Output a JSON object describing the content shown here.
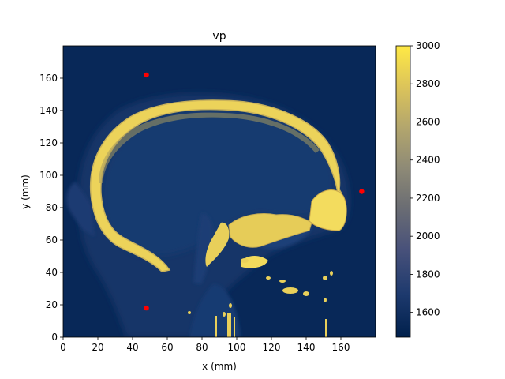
{
  "chart_data": {
    "type": "heatmap",
    "title": "vp",
    "xlabel": "x (mm)",
    "ylabel": "y (mm)",
    "xlim": [
      0,
      180
    ],
    "ylim": [
      0,
      180
    ],
    "x_ticks": [
      0,
      20,
      40,
      60,
      80,
      100,
      120,
      140,
      160
    ],
    "y_ticks": [
      0,
      20,
      40,
      60,
      80,
      100,
      120,
      140,
      160
    ],
    "colorbar": {
      "min": 1470,
      "max": 3000,
      "ticks": [
        1600,
        1800,
        2000,
        2200,
        2400,
        2600,
        2800,
        3000
      ],
      "colormap": "cividis"
    },
    "image_content": "sagittal head MRI slice shown as a speed-of-sound map; bright yellow skull and bone, dark blue soft tissue and water background",
    "points": [
      {
        "x": 48,
        "y": 162,
        "color": "#ff0000"
      },
      {
        "x": 172,
        "y": 90,
        "color": "#ff0000"
      },
      {
        "x": 48,
        "y": 18,
        "color": "#ff0000"
      }
    ],
    "colors": {
      "background": "#0a2a5c",
      "tissue": "#17376e",
      "bone": "#f0d858",
      "bone_dark": "#c8b050",
      "marker": "#ff0000"
    }
  }
}
